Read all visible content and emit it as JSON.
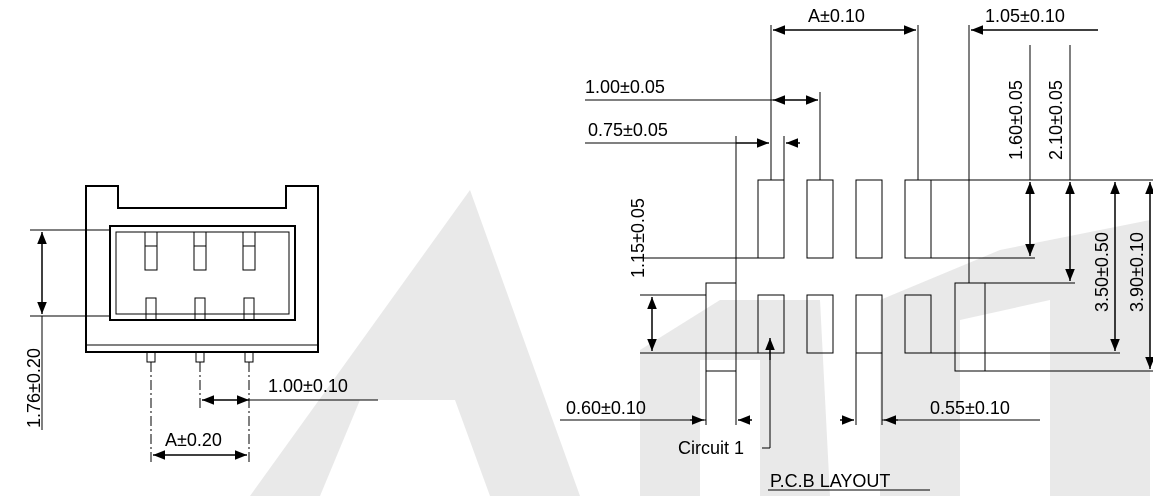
{
  "watermark": {
    "text": "A"
  },
  "side_view": {
    "dims": {
      "height": "1.76±0.20",
      "pitch": "1.00±0.10",
      "span": "A±0.20"
    }
  },
  "pcb_layout": {
    "title": "P.C.B LAYOUT",
    "circuit_label": "Circuit 1",
    "dims": {
      "span_top": "A±0.10",
      "pad_right_width": "1.05±0.10",
      "pitch": "1.00±0.05",
      "pad_width_top": "0.75±0.05",
      "row_gap": "1.15±0.05",
      "upper_pad_height": "1.60±0.05",
      "upper_to_ref": "2.10±0.05",
      "total_height": "3.50±0.50",
      "overall_height": "3.90±0.10",
      "left_pad_width": "0.60±0.10",
      "bottom_pad_width": "0.55±0.10"
    }
  }
}
